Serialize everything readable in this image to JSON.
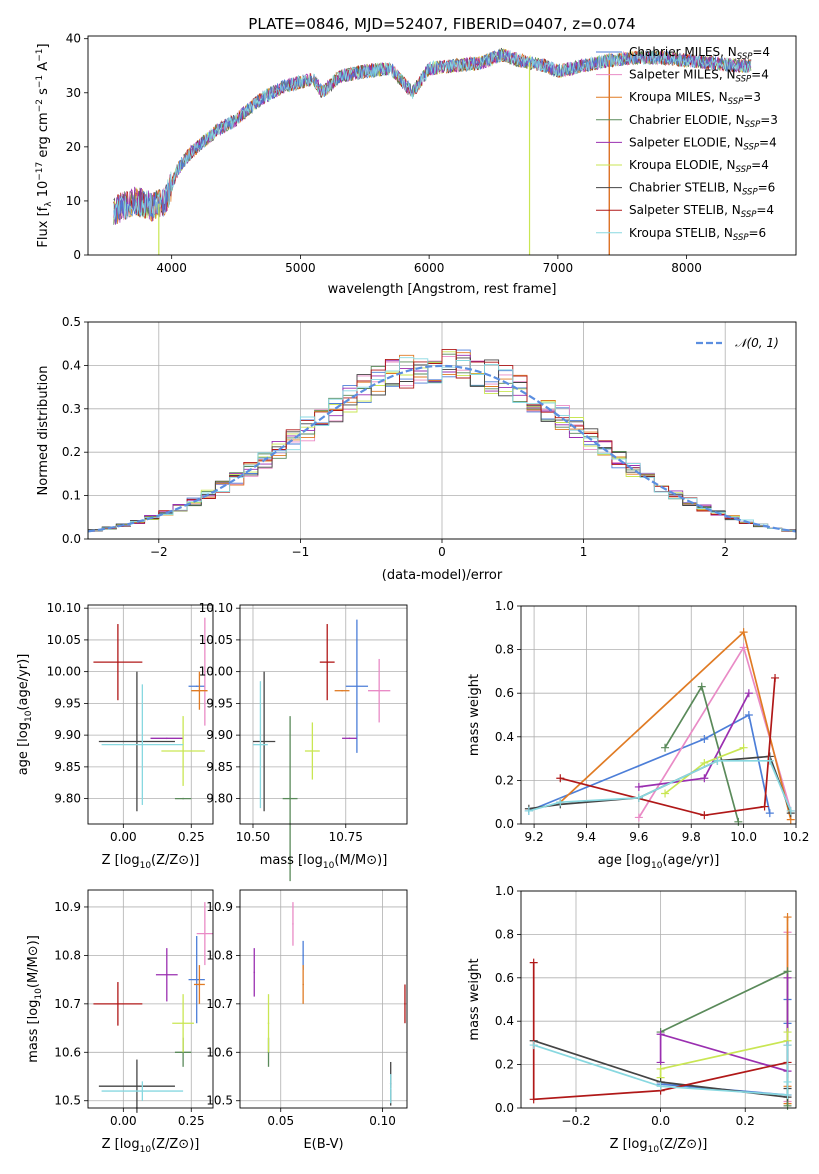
{
  "figure": {
    "title": "PLATE=0846, MJD=52407, FIBERID=0407, z=0.074",
    "colors": {
      "Chabrier MILES": "#4c7ed8",
      "Salpeter MILES": "#e98bc6",
      "Kroupa MILES": "#e07b24",
      "Chabrier ELODIE": "#5a8a5a",
      "Salpeter ELODIE": "#9a2fb0",
      "Kroupa ELODIE": "#c9e653",
      "Chabrier STELIB": "#444444",
      "Salpeter STELIB": "#b01818",
      "Kroupa STELIB": "#88d8e0",
      "normal": "#5b8ee0"
    }
  },
  "chart_data": [
    {
      "id": "spectrum",
      "type": "line",
      "xlabel": "wavelength [Angstrom, rest frame]",
      "ylabel": "Flux [f_λ 10^-17 erg cm^-2 s^-1 A^-1]",
      "xlim": [
        3350,
        8850
      ],
      "ylim": [
        0,
        40.5
      ],
      "xticks": [
        4000,
        5000,
        6000,
        7000,
        8000
      ],
      "yticks": [
        0,
        10,
        20,
        30,
        40
      ],
      "legend_location": "right",
      "legend": [
        {
          "model": "Chabrier MILES",
          "nssp": "4"
        },
        {
          "model": "Salpeter MILES",
          "nssp": "4"
        },
        {
          "model": "Kroupa MILES",
          "nssp": "3"
        },
        {
          "model": "Chabrier ELODIE",
          "nssp": "3"
        },
        {
          "model": "Salpeter ELODIE",
          "nssp": "4"
        },
        {
          "model": "Kroupa ELODIE",
          "nssp": "4"
        },
        {
          "model": "Chabrier STELIB",
          "nssp": "6"
        },
        {
          "model": "Salpeter STELIB",
          "nssp": "4"
        },
        {
          "model": "Kroupa STELIB",
          "nssp": "6"
        }
      ],
      "continuum_x": [
        3550,
        3700,
        3850,
        3950,
        4050,
        4150,
        4250,
        4350,
        4500,
        4700,
        4860,
        5000,
        5100,
        5170,
        5300,
        5500,
        5700,
        5870,
        6000,
        6200,
        6400,
        6563,
        6700,
        6900,
        7000,
        7200,
        7400,
        7600,
        7800,
        8000,
        8200,
        8400,
        8500
      ],
      "continuum_y": [
        8,
        10,
        9,
        10,
        16,
        19,
        21,
        23,
        25,
        29,
        31,
        32,
        32.5,
        30,
        33,
        34,
        34.5,
        30,
        34.5,
        35,
        35.5,
        37,
        36,
        35,
        34,
        35,
        36,
        36.5,
        36.5,
        36,
        35.5,
        35,
        35
      ],
      "dips": [
        {
          "model": "Kroupa ELODIE",
          "x": 3900,
          "to": 0
        },
        {
          "model": "Kroupa ELODIE",
          "x": 6780,
          "to": 0
        },
        {
          "model": "Salpeter STELIB",
          "x": 7400,
          "to": 0
        },
        {
          "model": "Kroupa MILES",
          "x": 7400,
          "to": 0
        }
      ]
    },
    {
      "id": "residuals",
      "type": "line",
      "xlabel": "(data-model)/error",
      "ylabel": "Normed distribution",
      "xlim": [
        -2.5,
        2.5
      ],
      "ylim": [
        0,
        0.5
      ],
      "xticks": [
        -2,
        -1,
        0,
        1,
        2
      ],
      "yticks": [
        0.0,
        0.1,
        0.2,
        0.3,
        0.4,
        0.5
      ],
      "bins": {
        "start": -2.5,
        "width": 0.1,
        "count": 50
      },
      "legend": [
        "𝒩(0, 1)"
      ],
      "legend_location": "top-right"
    },
    {
      "id": "age_vs_Z",
      "type": "scatter",
      "xlabel": "Z [log10(Z/Z⊙)]",
      "ylabel": "age  [log10(age/yr)]",
      "xlim": [
        -0.13,
        0.33
      ],
      "ylim": [
        9.76,
        10.105
      ],
      "xticks": [
        0.0,
        0.25
      ],
      "yticks": [
        9.8,
        9.85,
        9.9,
        9.95,
        10.0,
        10.05,
        10.1
      ],
      "points": [
        {
          "model": "Chabrier MILES",
          "x": 0.27,
          "y": 9.977,
          "xerr": 0.03,
          "yerr": 0.0
        },
        {
          "model": "Salpeter MILES",
          "x": 0.3,
          "y": 10.0,
          "xerr": 0.0,
          "yerr": 0.085
        },
        {
          "model": "Kroupa MILES",
          "x": 0.28,
          "y": 9.97,
          "xerr": 0.03,
          "yerr": 0.03
        },
        {
          "model": "Chabrier ELODIE",
          "x": 0.22,
          "y": 9.8,
          "xerr": 0.03,
          "yerr": 0.0
        },
        {
          "model": "Salpeter ELODIE",
          "x": 0.16,
          "y": 9.895,
          "xerr": 0.06,
          "yerr": 0.0
        },
        {
          "model": "Kroupa ELODIE",
          "x": 0.22,
          "y": 9.875,
          "xerr": 0.08,
          "yerr": 0.055
        },
        {
          "model": "Chabrier STELIB",
          "x": 0.05,
          "y": 9.89,
          "xerr": 0.14,
          "yerr": 0.11
        },
        {
          "model": "Salpeter STELIB",
          "x": -0.02,
          "y": 10.015,
          "xerr": 0.09,
          "yerr": 0.06
        },
        {
          "model": "Kroupa STELIB",
          "x": 0.07,
          "y": 9.885,
          "xerr": 0.15,
          "yerr": 0.095
        }
      ]
    },
    {
      "id": "age_vs_mass",
      "type": "scatter",
      "xlabel": "mass [log10(M/M⊙)]",
      "ylabel": "",
      "xlim": [
        10.465,
        10.915
      ],
      "ylim": [
        9.76,
        10.105
      ],
      "xticks": [
        10.5,
        10.75
      ],
      "yticks": [
        9.8,
        9.85,
        9.9,
        9.95,
        10.0,
        10.05,
        10.1
      ],
      "points": [
        {
          "model": "Chabrier MILES",
          "x": 10.78,
          "y": 9.977,
          "xerr": 0.03,
          "yerr": 0.105
        },
        {
          "model": "Salpeter MILES",
          "x": 10.84,
          "y": 9.97,
          "xerr": 0.03,
          "yerr": 0.05
        },
        {
          "model": "Kroupa MILES",
          "x": 10.74,
          "y": 9.97,
          "xerr": 0.02,
          "yerr": 0.0
        },
        {
          "model": "Chabrier ELODIE",
          "x": 10.6,
          "y": 9.8,
          "xerr": 0.02,
          "yerr": 0.13
        },
        {
          "model": "Salpeter ELODIE",
          "x": 10.76,
          "y": 9.895,
          "xerr": 0.02,
          "yerr": 0.0
        },
        {
          "model": "Kroupa ELODIE",
          "x": 10.66,
          "y": 9.875,
          "xerr": 0.02,
          "yerr": 0.045
        },
        {
          "model": "Chabrier STELIB",
          "x": 10.53,
          "y": 9.89,
          "xerr": 0.03,
          "yerr": 0.11
        },
        {
          "model": "Salpeter STELIB",
          "x": 10.7,
          "y": 10.015,
          "xerr": 0.02,
          "yerr": 0.06
        },
        {
          "model": "Kroupa STELIB",
          "x": 10.52,
          "y": 9.885,
          "xerr": 0.02,
          "yerr": 0.1
        }
      ]
    },
    {
      "id": "weights_vs_age",
      "type": "line",
      "xlabel": "age  [log10(age/yr)]",
      "ylabel": "mass weight",
      "xlim": [
        9.15,
        10.2
      ],
      "ylim": [
        0,
        1.0
      ],
      "xticks": [
        9.2,
        9.4,
        9.6,
        9.8,
        10.0,
        10.2
      ],
      "yticks": [
        0.0,
        0.2,
        0.4,
        0.6,
        0.8,
        1.0
      ],
      "series": [
        {
          "model": "Chabrier MILES",
          "x": [
            9.18,
            9.85,
            10.02,
            10.1
          ],
          "y": [
            0.06,
            0.39,
            0.5,
            0.05
          ]
        },
        {
          "model": "Salpeter MILES",
          "x": [
            9.6,
            10.0,
            10.18
          ],
          "y": [
            0.03,
            0.81,
            0.06
          ]
        },
        {
          "model": "Kroupa MILES",
          "x": [
            9.3,
            10.0,
            10.18
          ],
          "y": [
            0.1,
            0.88,
            0.02
          ]
        },
        {
          "model": "Chabrier ELODIE",
          "x": [
            9.7,
            9.84,
            9.98
          ],
          "y": [
            0.35,
            0.63,
            0.01
          ]
        },
        {
          "model": "Salpeter ELODIE",
          "x": [
            9.6,
            9.85,
            10.02
          ],
          "y": [
            0.17,
            0.21,
            0.6
          ]
        },
        {
          "model": "Kroupa ELODIE",
          "x": [
            9.7,
            9.85,
            10.0
          ],
          "y": [
            0.14,
            0.28,
            0.35
          ]
        },
        {
          "model": "Chabrier STELIB",
          "x": [
            9.18,
            9.3,
            9.6,
            9.9,
            10.1,
            10.18
          ],
          "y": [
            0.07,
            0.09,
            0.12,
            0.29,
            0.31,
            0.05
          ]
        },
        {
          "model": "Salpeter STELIB",
          "x": [
            9.3,
            9.85,
            10.08,
            10.12
          ],
          "y": [
            0.21,
            0.04,
            0.08,
            0.67
          ]
        },
        {
          "model": "Kroupa STELIB",
          "x": [
            9.18,
            9.3,
            9.6,
            9.9,
            10.1,
            10.18
          ],
          "y": [
            0.06,
            0.1,
            0.12,
            0.29,
            0.29,
            0.06
          ]
        }
      ]
    },
    {
      "id": "mass_vs_Z",
      "type": "scatter",
      "xlabel": "Z [log10(Z/Z⊙)]",
      "ylabel": "mass [log10(M/M⊙)]",
      "xlim": [
        -0.13,
        0.33
      ],
      "ylim": [
        10.485,
        10.935
      ],
      "xticks": [
        0.0,
        0.25
      ],
      "yticks": [
        10.5,
        10.6,
        10.7,
        10.8,
        10.9
      ],
      "points": [
        {
          "model": "Chabrier MILES",
          "x": 0.27,
          "y": 10.75,
          "xerr": 0.03,
          "yerr": 0.09
        },
        {
          "model": "Salpeter MILES",
          "x": 0.3,
          "y": 10.845,
          "xerr": 0.03,
          "yerr": 0.065
        },
        {
          "model": "Kroupa MILES",
          "x": 0.28,
          "y": 10.74,
          "xerr": 0.02,
          "yerr": 0.04
        },
        {
          "model": "Chabrier ELODIE",
          "x": 0.22,
          "y": 10.6,
          "xerr": 0.03,
          "yerr": 0.03
        },
        {
          "model": "Salpeter ELODIE",
          "x": 0.16,
          "y": 10.76,
          "xerr": 0.04,
          "yerr": 0.055
        },
        {
          "model": "Kroupa ELODIE",
          "x": 0.22,
          "y": 10.66,
          "xerr": 0.04,
          "yerr": 0.06
        },
        {
          "model": "Chabrier STELIB",
          "x": 0.05,
          "y": 10.53,
          "xerr": 0.14,
          "yerr": 0.055
        },
        {
          "model": "Salpeter STELIB",
          "x": -0.02,
          "y": 10.7,
          "xerr": 0.09,
          "yerr": 0.045
        },
        {
          "model": "Kroupa STELIB",
          "x": 0.07,
          "y": 10.52,
          "xerr": 0.15,
          "yerr": 0.02
        }
      ]
    },
    {
      "id": "mass_vs_ebv",
      "type": "scatter",
      "xlabel": "E(B-V)",
      "ylabel": "",
      "xlim": [
        0.03,
        0.112
      ],
      "ylim": [
        10.485,
        10.935
      ],
      "xticks": [
        0.05,
        0.1
      ],
      "yticks": [
        10.5,
        10.6,
        10.7,
        10.8,
        10.9
      ],
      "points": [
        {
          "model": "Chabrier MILES",
          "x": 0.061,
          "y": 10.8,
          "xerr": 0.0,
          "yerr": 0.03
        },
        {
          "model": "Salpeter MILES",
          "x": 0.056,
          "y": 10.865,
          "xerr": 0.0,
          "yerr": 0.045
        },
        {
          "model": "Kroupa MILES",
          "x": 0.061,
          "y": 10.74,
          "xerr": 0.0,
          "yerr": 0.04
        },
        {
          "model": "Chabrier ELODIE",
          "x": 0.044,
          "y": 10.6,
          "xerr": 0.0,
          "yerr": 0.03
        },
        {
          "model": "Salpeter ELODIE",
          "x": 0.037,
          "y": 10.765,
          "xerr": 0.0,
          "yerr": 0.05
        },
        {
          "model": "Kroupa ELODIE",
          "x": 0.044,
          "y": 10.66,
          "xerr": 0.0,
          "yerr": 0.06
        },
        {
          "model": "Chabrier STELIB",
          "x": 0.104,
          "y": 10.535,
          "xerr": 0.0,
          "yerr": 0.045
        },
        {
          "model": "Salpeter STELIB",
          "x": 0.111,
          "y": 10.7,
          "xerr": 0.0,
          "yerr": 0.04
        },
        {
          "model": "Kroupa STELIB",
          "x": 0.104,
          "y": 10.525,
          "xerr": 0.0,
          "yerr": 0.03
        }
      ]
    },
    {
      "id": "weights_vs_Z",
      "type": "line",
      "xlabel": "Z [log10(Z/Z⊙)]",
      "ylabel": "mass weight",
      "xlim": [
        -0.33,
        0.32
      ],
      "ylim": [
        0,
        1.0
      ],
      "xticks": [
        -0.2,
        0.0,
        0.2
      ],
      "yticks": [
        0.0,
        0.2,
        0.4,
        0.6,
        0.8,
        1.0
      ],
      "series": [
        {
          "model": "Chabrier MILES",
          "x": [
            0.0,
            0.3,
            0.3,
            0.3
          ],
          "y": [
            0.11,
            0.06,
            0.39,
            0.5
          ]
        },
        {
          "model": "Salpeter MILES",
          "x": [
            0.3,
            0.3,
            0.3
          ],
          "y": [
            0.81,
            0.06,
            0.03
          ]
        },
        {
          "model": "Kroupa MILES",
          "x": [
            0.3,
            0.3,
            0.3
          ],
          "y": [
            0.88,
            0.1,
            0.02
          ]
        },
        {
          "model": "Chabrier ELODIE",
          "x": [
            0.0,
            0.3,
            0.3
          ],
          "y": [
            0.35,
            0.63,
            0.01
          ]
        },
        {
          "model": "Salpeter ELODIE",
          "x": [
            0.0,
            0.0,
            0.3,
            0.3
          ],
          "y": [
            0.21,
            0.34,
            0.17,
            0.6
          ]
        },
        {
          "model": "Kroupa ELODIE",
          "x": [
            0.0,
            0.0,
            0.3,
            0.3
          ],
          "y": [
            0.14,
            0.18,
            0.31,
            0.35
          ]
        },
        {
          "model": "Chabrier STELIB",
          "x": [
            -0.3,
            0.0,
            0.3,
            0.3,
            0.3
          ],
          "y": [
            0.31,
            0.12,
            0.05,
            0.09,
            0.29
          ]
        },
        {
          "model": "Salpeter STELIB",
          "x": [
            -0.3,
            -0.3,
            0.0,
            0.3
          ],
          "y": [
            0.67,
            0.04,
            0.08,
            0.21
          ]
        },
        {
          "model": "Kroupa STELIB",
          "x": [
            -0.3,
            0.0,
            0.3,
            0.3,
            0.3
          ],
          "y": [
            0.29,
            0.1,
            0.06,
            0.12,
            0.29
          ]
        }
      ]
    }
  ]
}
